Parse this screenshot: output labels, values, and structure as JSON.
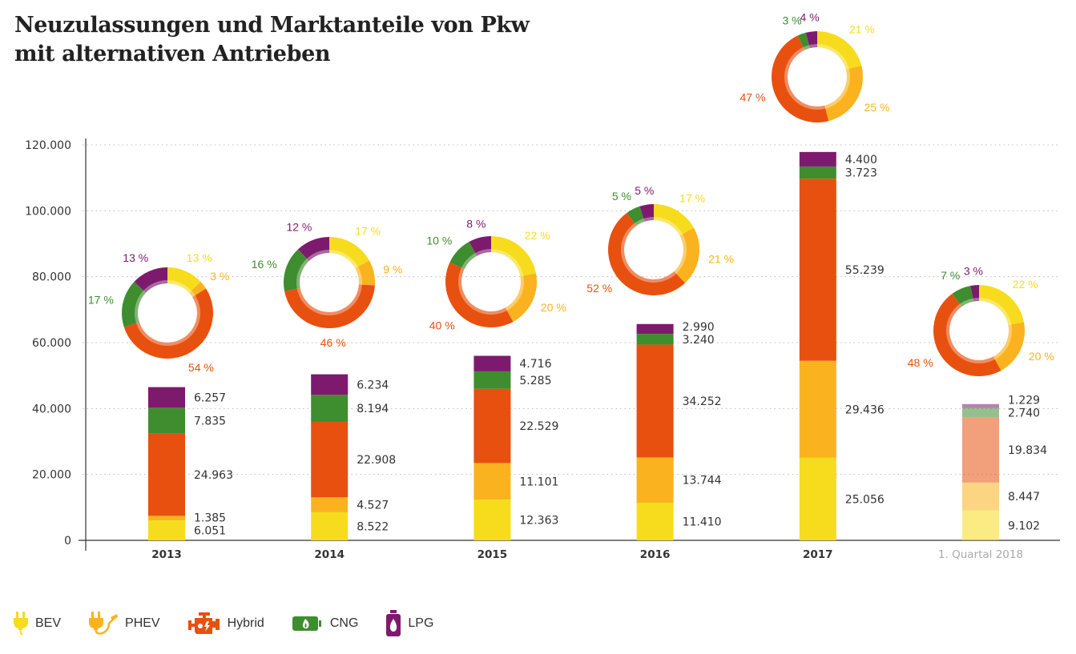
{
  "title_lines": [
    "Neuzulassungen und Marktanteile von Pkw",
    "mit alternativen Antrieben"
  ],
  "colors": {
    "BEV": "#f6dc1c",
    "PHEV": "#fab31e",
    "Hybrid": "#e8500f",
    "CNG": "#3e8d2f",
    "LPG": "#7e1a6e",
    "axis_text": "#333333",
    "grid": "#bbbbbb",
    "muted_label": "#aaaaaa"
  },
  "legend": [
    {
      "key": "BEV",
      "label": "BEV",
      "icon": "plug-icon"
    },
    {
      "key": "PHEV",
      "label": "PHEV",
      "icon": "plug-fuel-icon"
    },
    {
      "key": "Hybrid",
      "label": "Hybrid",
      "icon": "engine-icon"
    },
    {
      "key": "CNG",
      "label": "CNG",
      "icon": "gas-cylinder-flame-icon"
    },
    {
      "key": "LPG",
      "label": "LPG",
      "icon": "gas-bottle-icon"
    }
  ],
  "chart_data": {
    "type": "bar",
    "stacked": true,
    "title": "Neuzulassungen und Marktanteile von Pkw mit alternativen Antrieben",
    "xlabel": "",
    "ylabel": "",
    "ylim": [
      0,
      120000
    ],
    "yticks": [
      0,
      20000,
      40000,
      60000,
      80000,
      100000,
      120000
    ],
    "ytick_labels": [
      "0",
      "20.000",
      "40.000",
      "60.000",
      "80.000",
      "100.000",
      "120.000"
    ],
    "grid": true,
    "legend_position": "bottom-left",
    "categories": [
      "2013",
      "2014",
      "2015",
      "2016",
      "2017",
      "1. Quartal 2018"
    ],
    "category_muted": [
      false,
      false,
      false,
      false,
      false,
      true
    ],
    "series": [
      {
        "name": "BEV",
        "values": [
          6051,
          8522,
          12363,
          11410,
          25056,
          9102
        ],
        "labels": [
          "6.051",
          "8.522",
          "12.363",
          "11.410",
          "25.056",
          "9.102"
        ]
      },
      {
        "name": "PHEV",
        "values": [
          1385,
          4527,
          11101,
          13744,
          29436,
          8447
        ],
        "labels": [
          "1.385",
          "4.527",
          "11.101",
          "13.744",
          "29.436",
          "8.447"
        ]
      },
      {
        "name": "Hybrid",
        "values": [
          24963,
          22908,
          22529,
          34252,
          55239,
          19834
        ],
        "labels": [
          "24.963",
          "22.908",
          "22.529",
          "34.252",
          "55.239",
          "19.834"
        ]
      },
      {
        "name": "CNG",
        "values": [
          7835,
          8194,
          5285,
          3240,
          3723,
          2740
        ],
        "labels": [
          "7.835",
          "8.194",
          "5.285",
          "3.240",
          "3.723",
          "2.740"
        ]
      },
      {
        "name": "LPG",
        "values": [
          6257,
          6234,
          4716,
          2990,
          4400,
          1229
        ],
        "labels": [
          "6.257",
          "6.234",
          "4.716",
          "2.990",
          "4.400",
          "1.229"
        ]
      }
    ],
    "donuts": [
      {
        "category": "2013",
        "shares": {
          "BEV": 13,
          "PHEV": 3,
          "Hybrid": 54,
          "CNG": 17,
          "LPG": 13
        }
      },
      {
        "category": "2014",
        "shares": {
          "BEV": 17,
          "PHEV": 9,
          "Hybrid": 46,
          "CNG": 16,
          "LPG": 12
        }
      },
      {
        "category": "2015",
        "shares": {
          "BEV": 22,
          "PHEV": 20,
          "Hybrid": 40,
          "CNG": 10,
          "LPG": 8
        }
      },
      {
        "category": "2016",
        "shares": {
          "BEV": 17,
          "PHEV": 21,
          "Hybrid": 52,
          "CNG": 5,
          "LPG": 5
        }
      },
      {
        "category": "2017",
        "shares": {
          "BEV": 21,
          "PHEV": 25,
          "Hybrid": 47,
          "CNG": 3,
          "LPG": 4
        }
      },
      {
        "category": "1. Quartal 2018",
        "shares": {
          "BEV": 22,
          "PHEV": 20,
          "Hybrid": 48,
          "CNG": 7,
          "LPG": 3
        }
      }
    ],
    "percent_suffix": " %"
  }
}
